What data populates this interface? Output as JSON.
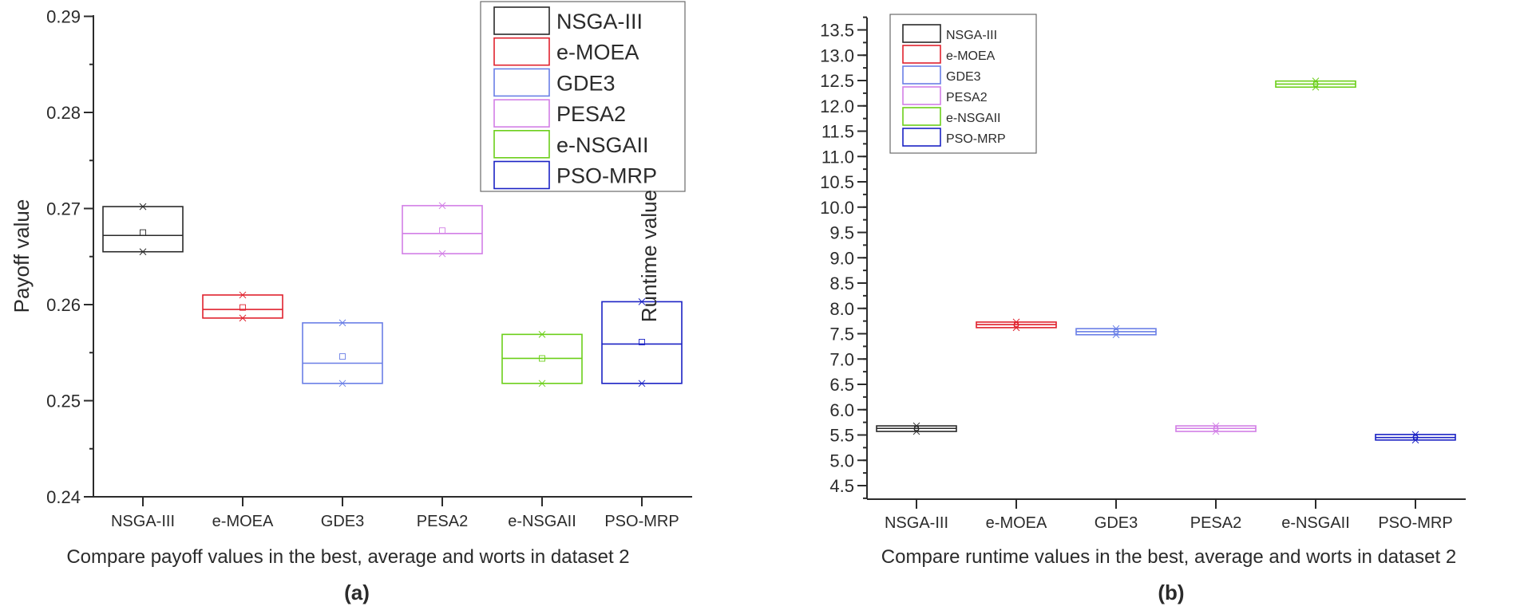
{
  "colors": {
    "NSGA-III": "#2a2a2a",
    "e-MOEA": "#e0222e",
    "GDE3": "#6a7fe6",
    "PESA2": "#d27fe6",
    "e-NSGAII": "#6ccf1a",
    "PSO-MRP": "#1b22c4"
  },
  "chart_data": [
    {
      "type": "box",
      "panel_label": "(a)",
      "title": "",
      "xlabel": "Compare payoff values in the best, average and worts in dataset 2",
      "ylabel": "Payoff value",
      "ylim": [
        0.24,
        0.29
      ],
      "yticks": [
        "0.24",
        "0.25",
        "0.26",
        "0.27",
        "0.28",
        "0.29"
      ],
      "categories": [
        "NSGA-III",
        "e-MOEA",
        "GDE3",
        "PESA2",
        "e-NSGAII",
        "PSO-MRP"
      ],
      "legend": {
        "position": "top-right",
        "entries": [
          "NSGA-III",
          "e-MOEA",
          "GDE3",
          "PESA2",
          "e-NSGAII",
          "PSO-MRP"
        ]
      },
      "series": [
        {
          "name": "NSGA-III",
          "max": 0.2702,
          "median": 0.2672,
          "mean": 0.2675,
          "min": 0.2655
        },
        {
          "name": "e-MOEA",
          "max": 0.261,
          "median": 0.2595,
          "mean": 0.2597,
          "min": 0.2586
        },
        {
          "name": "GDE3",
          "max": 0.2581,
          "median": 0.2539,
          "mean": 0.2546,
          "min": 0.2518
        },
        {
          "name": "PESA2",
          "max": 0.2703,
          "median": 0.2674,
          "mean": 0.2677,
          "min": 0.2653
        },
        {
          "name": "e-NSGAII",
          "max": 0.2569,
          "median": 0.2544,
          "mean": 0.2544,
          "min": 0.2518
        },
        {
          "name": "PSO-MRP",
          "max": 0.2603,
          "median": 0.2559,
          "mean": 0.2561,
          "min": 0.2518
        }
      ]
    },
    {
      "type": "box",
      "panel_label": "(b)",
      "title": "",
      "xlabel": "Compare runtime values in the best, average and worts in dataset 2",
      "ylabel": "Runtime value",
      "ylim": [
        4.23,
        13.75
      ],
      "yticks": [
        "4.5",
        "5.0",
        "5.5",
        "6.0",
        "6.5",
        "7.0",
        "7.5",
        "8.0",
        "8.5",
        "9.0",
        "9.5",
        "10.0",
        "10.5",
        "11.0",
        "11.5",
        "12.0",
        "12.5",
        "13.0",
        "13.5"
      ],
      "categories": [
        "NSGA-III",
        "e-MOEA",
        "GDE3",
        "PESA2",
        "e-NSGAII",
        "PSO-MRP"
      ],
      "legend": {
        "position": "top-left",
        "entries": [
          "NSGA-III",
          "e-MOEA",
          "GDE3",
          "PESA2",
          "e-NSGAII",
          "PSO-MRP"
        ]
      },
      "series": [
        {
          "name": "NSGA-III",
          "max": 5.68,
          "median": 5.63,
          "mean": 5.63,
          "min": 5.57
        },
        {
          "name": "e-MOEA",
          "max": 7.73,
          "median": 7.68,
          "mean": 7.68,
          "min": 7.62
        },
        {
          "name": "GDE3",
          "max": 7.6,
          "median": 7.54,
          "mean": 7.54,
          "min": 7.48
        },
        {
          "name": "PESA2",
          "max": 5.68,
          "median": 5.63,
          "mean": 5.63,
          "min": 5.57
        },
        {
          "name": "e-NSGAII",
          "max": 12.49,
          "median": 12.43,
          "mean": 12.43,
          "min": 12.37
        },
        {
          "name": "PSO-MRP",
          "max": 5.51,
          "median": 5.45,
          "mean": 5.45,
          "min": 5.4
        }
      ]
    }
  ]
}
